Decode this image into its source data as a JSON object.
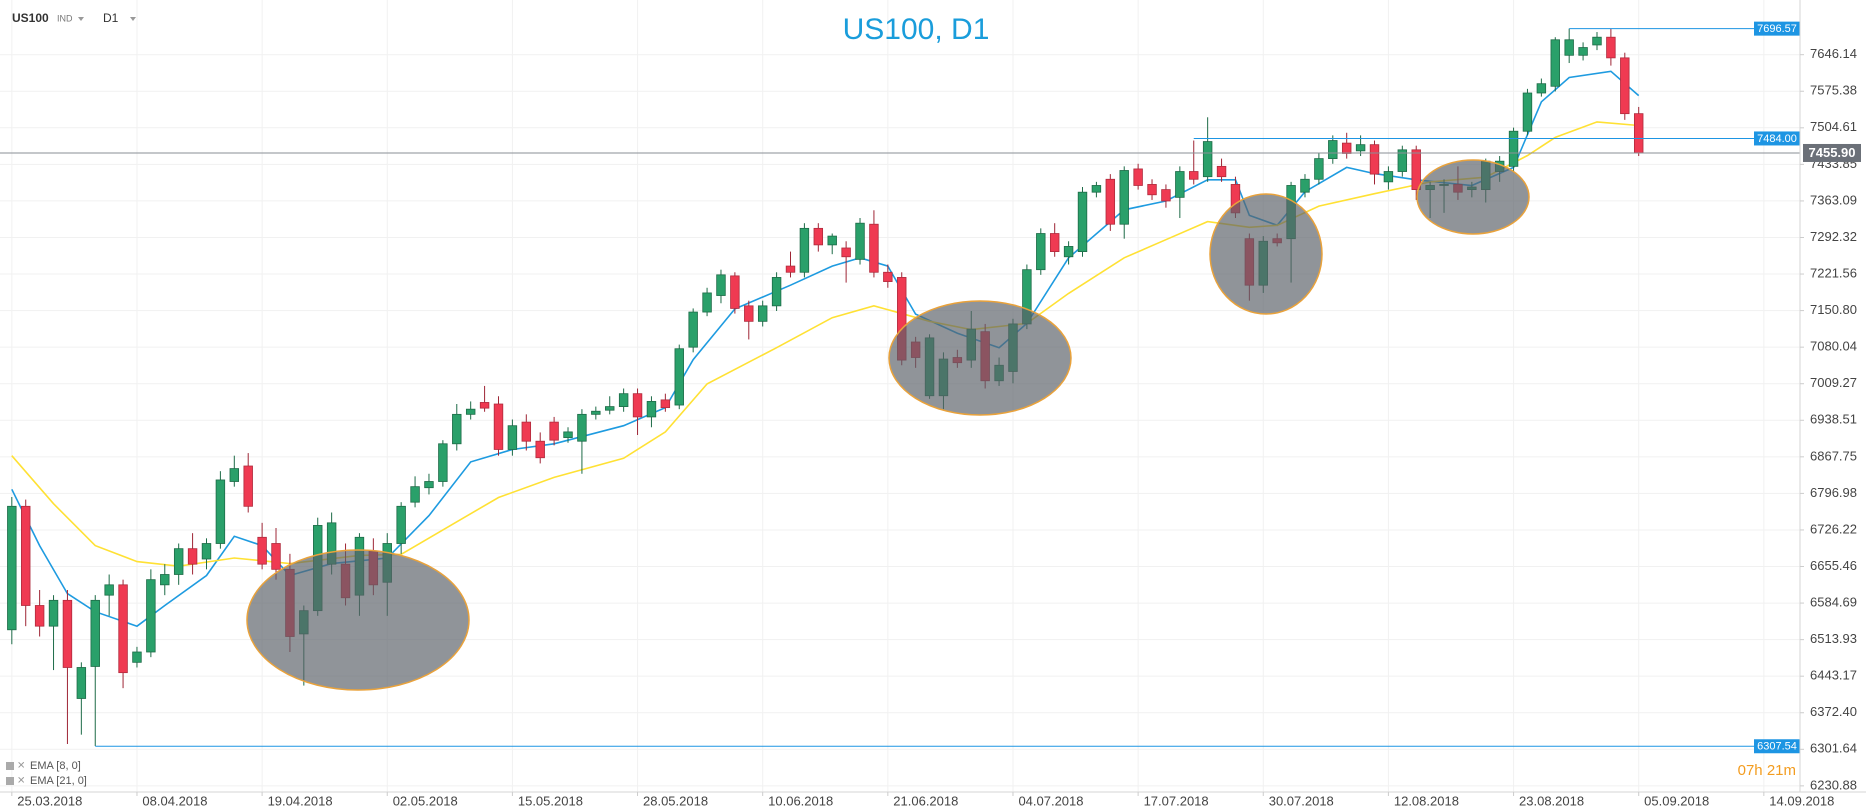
{
  "toolbar": {
    "symbol": "US100",
    "instrument_type": "IND",
    "timeframe": "D1"
  },
  "chart_data": {
    "type": "candlestick",
    "title": "US100, D1",
    "up_color": "#2aa06a",
    "down_color": "#ef3a52",
    "grid": true,
    "xlim": [
      -0.85,
      128.6
    ],
    "ylim": [
      6219,
      7752
    ],
    "xticks": [
      {
        "value": 0,
        "label": "25.03.2018"
      },
      {
        "value": 9,
        "label": "08.04.2018"
      },
      {
        "value": 18,
        "label": "19.04.2018"
      },
      {
        "value": 27,
        "label": "02.05.2018"
      },
      {
        "value": 36,
        "label": "15.05.2018"
      },
      {
        "value": 45,
        "label": "28.05.2018"
      },
      {
        "value": 54,
        "label": "10.06.2018"
      },
      {
        "value": 63,
        "label": "21.06.2018"
      },
      {
        "value": 72,
        "label": "04.07.2018"
      },
      {
        "value": 81,
        "label": "17.07.2018"
      },
      {
        "value": 90,
        "label": "30.07.2018"
      },
      {
        "value": 99,
        "label": "12.08.2018"
      },
      {
        "value": 108,
        "label": "23.08.2018"
      },
      {
        "value": 117,
        "label": "05.09.2018"
      },
      {
        "value": 126,
        "label": "14.09.2018"
      }
    ],
    "yticks": [
      7646.14,
      7575.38,
      7504.61,
      7433.85,
      7363.09,
      7292.32,
      7221.56,
      {
        "value": 7150.8,
        "label": "7150.80"
      },
      7080.04,
      7009.27,
      6938.51,
      6867.75,
      6796.98,
      6726.22,
      6655.46,
      6584.69,
      6513.93,
      6443.17,
      {
        "value": 6372.4,
        "label": "6372.40"
      },
      6301.64,
      6230.88
    ],
    "candles": [
      [
        6533,
        6790,
        6505,
        6772
      ],
      [
        6772,
        6785,
        6540,
        6580
      ],
      [
        6580,
        6610,
        6520,
        6540
      ],
      [
        6540,
        6600,
        6455,
        6590
      ],
      [
        6590,
        6610,
        6312,
        6460
      ],
      [
        6400,
        6470,
        6330,
        6460
      ],
      [
        6462,
        6600,
        6308,
        6590
      ],
      [
        6600,
        6640,
        6560,
        6620
      ],
      [
        6620,
        6630,
        6420,
        6450
      ],
      [
        6470,
        6500,
        6460,
        6490
      ],
      [
        6490,
        6650,
        6480,
        6630
      ],
      [
        6620,
        6660,
        6600,
        6640
      ],
      [
        6640,
        6700,
        6620,
        6690
      ],
      [
        6690,
        6720,
        6640,
        6660
      ],
      [
        6670,
        6710,
        6650,
        6700
      ],
      [
        6700,
        6840,
        6690,
        6823
      ],
      [
        6820,
        6870,
        6810,
        6845
      ],
      [
        6850,
        6875,
        6760,
        6772
      ],
      [
        6712,
        6740,
        6650,
        6660
      ],
      [
        6700,
        6730,
        6630,
        6650
      ],
      [
        6650,
        6680,
        6490,
        6520
      ],
      [
        6525,
        6580,
        6425,
        6570
      ],
      [
        6570,
        6750,
        6560,
        6735
      ],
      [
        6660,
        6760,
        6640,
        6740
      ],
      [
        6660,
        6700,
        6580,
        6595
      ],
      [
        6600,
        6720,
        6560,
        6712
      ],
      [
        6685,
        6710,
        6600,
        6620
      ],
      [
        6625,
        6720,
        6560,
        6700
      ],
      [
        6700,
        6780,
        6680,
        6772
      ],
      [
        6780,
        6830,
        6770,
        6810
      ],
      [
        6808,
        6835,
        6795,
        6820
      ],
      [
        6820,
        6900,
        6810,
        6893
      ],
      [
        6893,
        6970,
        6880,
        6950
      ],
      [
        6950,
        6975,
        6940,
        6960
      ],
      [
        6973,
        7005,
        6955,
        6962
      ],
      [
        6970,
        6985,
        6870,
        6882
      ],
      [
        6882,
        6940,
        6870,
        6928
      ],
      [
        6935,
        6950,
        6880,
        6898
      ],
      [
        6898,
        6915,
        6855,
        6866
      ],
      [
        6935,
        6945,
        6890,
        6900
      ],
      [
        6905,
        6925,
        6895,
        6916
      ],
      [
        6898,
        6960,
        6835,
        6950
      ],
      [
        6950,
        6965,
        6940,
        6956
      ],
      [
        6958,
        6985,
        6950,
        6965
      ],
      [
        6965,
        7000,
        6955,
        6990
      ],
      [
        6990,
        7000,
        6910,
        6945
      ],
      [
        6945,
        6985,
        6925,
        6975
      ],
      [
        6978,
        6990,
        6955,
        6963
      ],
      [
        6968,
        7085,
        6960,
        7077
      ],
      [
        7080,
        7155,
        7070,
        7148
      ],
      [
        7148,
        7195,
        7140,
        7185
      ],
      [
        7180,
        7230,
        7165,
        7220
      ],
      [
        7218,
        7225,
        7145,
        7155
      ],
      [
        7160,
        7170,
        7095,
        7130
      ],
      [
        7130,
        7170,
        7120,
        7160
      ],
      [
        7160,
        7225,
        7150,
        7215
      ],
      [
        7237,
        7265,
        7215,
        7225
      ],
      [
        7225,
        7320,
        7215,
        7310
      ],
      [
        7310,
        7320,
        7265,
        7278
      ],
      [
        7278,
        7300,
        7260,
        7295
      ],
      [
        7272,
        7285,
        7205,
        7255
      ],
      [
        7250,
        7330,
        7240,
        7320
      ],
      [
        7318,
        7345,
        7215,
        7225
      ],
      [
        7225,
        7240,
        7195,
        7207
      ],
      [
        7215,
        7225,
        7045,
        7055
      ],
      [
        7090,
        7100,
        7040,
        7060
      ],
      [
        6986,
        7105,
        6980,
        7098
      ],
      [
        6986,
        7070,
        6960,
        7057
      ],
      [
        7060,
        7075,
        7040,
        7050
      ],
      [
        7055,
        7150,
        7040,
        7115
      ],
      [
        7110,
        7125,
        7000,
        7015
      ],
      [
        7015,
        7060,
        7005,
        7045
      ],
      [
        7033,
        7135,
        7010,
        7125
      ],
      [
        7125,
        7240,
        7115,
        7230
      ],
      [
        7230,
        7310,
        7220,
        7300
      ],
      [
        7300,
        7320,
        7255,
        7265
      ],
      [
        7255,
        7285,
        7240,
        7275
      ],
      [
        7265,
        7390,
        7255,
        7380
      ],
      [
        7380,
        7400,
        7370,
        7393
      ],
      [
        7405,
        7415,
        7305,
        7318
      ],
      [
        7318,
        7430,
        7290,
        7422
      ],
      [
        7425,
        7435,
        7385,
        7393
      ],
      [
        7395,
        7405,
        7365,
        7375
      ],
      [
        7385,
        7395,
        7350,
        7363
      ],
      [
        7370,
        7430,
        7330,
        7420
      ],
      [
        7420,
        7480,
        7395,
        7405
      ],
      [
        7410,
        7525,
        7400,
        7478
      ],
      [
        7430,
        7445,
        7400,
        7410
      ],
      [
        7395,
        7410,
        7330,
        7340
      ],
      [
        7290,
        7300,
        7170,
        7200
      ],
      [
        7200,
        7295,
        7185,
        7285
      ],
      [
        7290,
        7300,
        7275,
        7282
      ],
      [
        7290,
        7400,
        7205,
        7393
      ],
      [
        7380,
        7415,
        7370,
        7405
      ],
      [
        7405,
        7455,
        7395,
        7445
      ],
      [
        7445,
        7490,
        7435,
        7480
      ],
      [
        7475,
        7495,
        7445,
        7455
      ],
      [
        7460,
        7490,
        7450,
        7472
      ],
      [
        7472,
        7480,
        7395,
        7415
      ],
      [
        7400,
        7430,
        7385,
        7420
      ],
      [
        7420,
        7470,
        7410,
        7462
      ],
      [
        7462,
        7470,
        7365,
        7385
      ],
      [
        7385,
        7400,
        7330,
        7393
      ],
      [
        7393,
        7405,
        7340,
        7395
      ],
      [
        7395,
        7430,
        7365,
        7380
      ],
      [
        7385,
        7400,
        7370,
        7390
      ],
      [
        7385,
        7445,
        7360,
        7440
      ],
      [
        7420,
        7450,
        7400,
        7440
      ],
      [
        7430,
        7505,
        7420,
        7498
      ],
      [
        7498,
        7580,
        7490,
        7572
      ],
      [
        7572,
        7600,
        7565,
        7590
      ],
      [
        7585,
        7680,
        7575,
        7675
      ],
      [
        7645,
        7696.57,
        7630,
        7675
      ],
      [
        7645,
        7670,
        7635,
        7660
      ],
      [
        7665,
        7690,
        7655,
        7680
      ],
      [
        7680,
        7696,
        7625,
        7640
      ],
      [
        7640,
        7650,
        7520,
        7532
      ],
      [
        7532,
        7545,
        7450,
        7456
      ]
    ],
    "series": [
      {
        "name": "EMA [8, 0]",
        "color": "#1e9be0",
        "x": [
          0,
          2,
          4,
          6,
          9,
          11,
          14,
          16,
          18,
          20,
          23,
          27,
          30,
          33,
          36,
          39,
          44,
          47,
          49,
          52,
          56,
          59,
          61,
          63,
          65,
          68,
          71,
          73,
          76,
          80,
          83,
          86,
          88,
          89,
          91,
          93,
          96,
          98,
          101,
          105,
          108,
          110,
          112,
          115,
          117
        ],
        "values": [
          6805,
          6696,
          6603,
          6568,
          6540,
          6580,
          6638,
          6714,
          6696,
          6638,
          6661,
          6672,
          6754,
          6858,
          6882,
          6893,
          6928,
          6963,
          7056,
          7154,
          7200,
          7237,
          7253,
          7237,
          7144,
          7107,
          7079,
          7126,
          7253,
          7346,
          7363,
          7404,
          7404,
          7335,
          7316,
          7381,
          7428,
          7416,
          7404,
          7393,
          7428,
          7555,
          7602,
          7614,
          7567
        ]
      },
      {
        "name": "EMA [21, 0]",
        "color": "#ffe134",
        "x": [
          0,
          3,
          6,
          9,
          12,
          16,
          20,
          25,
          28,
          32,
          35,
          39,
          44,
          47,
          50,
          55,
          59,
          62,
          66,
          69,
          73,
          76,
          80,
          83,
          86,
          89,
          91,
          94,
          98,
          102,
          106,
          109,
          111,
          114,
          117
        ],
        "values": [
          6870,
          6777,
          6696,
          6665,
          6656,
          6672,
          6661,
          6677,
          6679,
          6742,
          6789,
          6828,
          6865,
          6916,
          7009,
          7079,
          7137,
          7160,
          7130,
          7114,
          7126,
          7184,
          7253,
          7288,
          7323,
          7312,
          7316,
          7353,
          7377,
          7400,
          7409,
          7451,
          7486,
          7516,
          7509
        ]
      }
    ],
    "price_lines": [
      {
        "value": 7696.57,
        "start": 112
      },
      {
        "value": 7484,
        "label": "7484.00",
        "start": 85
      },
      {
        "value": 6307.54,
        "start": 6
      }
    ],
    "last_price": {
      "value": 7455.9,
      "label": "7455.90"
    },
    "candle_timer": "07h 21m"
  }
}
